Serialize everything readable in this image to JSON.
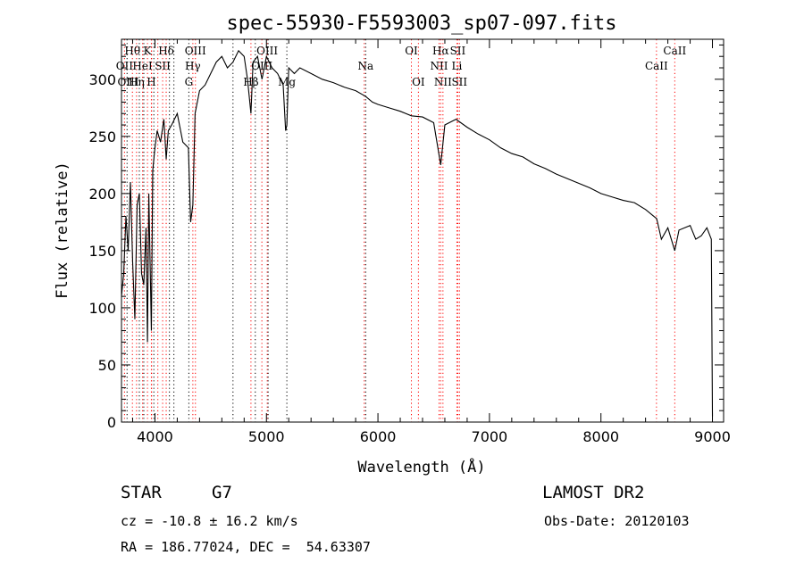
{
  "chart_data": {
    "type": "line",
    "title": "spec-55930-F5593003_sp07-097.fits",
    "xlabel": "Wavelength (Å)",
    "ylabel": "Flux (relative)",
    "xlim": [
      3700,
      9100
    ],
    "ylim": [
      0,
      335
    ],
    "xticks": [
      4000,
      5000,
      6000,
      7000,
      8000,
      9000
    ],
    "yticks": [
      0,
      50,
      100,
      150,
      200,
      250,
      300
    ],
    "grid": false,
    "series": [
      {
        "x": [
          3700,
          3720,
          3740,
          3760,
          3780,
          3800,
          3820,
          3840,
          3860,
          3880,
          3900,
          3920,
          3933,
          3945,
          3968,
          3980,
          4000,
          4020,
          4050,
          4080,
          4101,
          4120,
          4150,
          4200,
          4250,
          4300,
          4320,
          4340,
          4360,
          4400,
          4450,
          4500,
          4550,
          4600,
          4650,
          4700,
          4750,
          4800,
          4830,
          4861,
          4880,
          4920,
          4960,
          5000,
          5050,
          5100,
          5150,
          5172,
          5183,
          5200,
          5250,
          5300,
          5400,
          5500,
          5600,
          5700,
          5800,
          5890,
          5950,
          6000,
          6100,
          6200,
          6300,
          6400,
          6500,
          6563,
          6600,
          6700,
          6800,
          6900,
          7000,
          7100,
          7200,
          7300,
          7400,
          7500,
          7600,
          7700,
          7800,
          7900,
          8000,
          8100,
          8200,
          8300,
          8400,
          8500,
          8542,
          8600,
          8662,
          8700,
          8800,
          8850,
          8900,
          8950,
          8990,
          9000
        ],
        "y": [
          110,
          130,
          180,
          150,
          210,
          140,
          90,
          190,
          200,
          130,
          120,
          170,
          70,
          200,
          80,
          220,
          240,
          255,
          245,
          265,
          230,
          255,
          260,
          270,
          245,
          240,
          175,
          190,
          270,
          290,
          295,
          305,
          315,
          320,
          310,
          315,
          325,
          320,
          300,
          270,
          315,
          320,
          300,
          320,
          310,
          305,
          295,
          255,
          260,
          310,
          305,
          310,
          305,
          300,
          297,
          293,
          290,
          285,
          280,
          278,
          275,
          272,
          268,
          267,
          262,
          225,
          260,
          265,
          258,
          252,
          247,
          240,
          235,
          232,
          226,
          222,
          217,
          213,
          209,
          205,
          200,
          197,
          194,
          192,
          186,
          178,
          160,
          170,
          150,
          168,
          172,
          160,
          163,
          170,
          160,
          5
        ]
      }
    ],
    "line_groups": [
      {
        "color": "#ff0000",
        "x": [
          3727,
          3798,
          3835,
          3889,
          3933,
          3968,
          3970,
          4026,
          4069,
          4101,
          4340,
          4363,
          4861,
          4959,
          5007,
          5877,
          6300,
          6363,
          6548,
          6563,
          6583,
          6708,
          6716,
          6731,
          8498,
          8662
        ]
      },
      {
        "color": "#000000",
        "x": [
          3750,
          3860,
          3900,
          3990,
          4130,
          4170,
          4304,
          4700,
          4900,
          5015,
          5183,
          5890
        ]
      }
    ],
    "line_labels": [
      {
        "text": "Hθ",
        "x": 3798,
        "row": 1
      },
      {
        "text": "K",
        "x": 3933,
        "row": 1
      },
      {
        "text": "Hδ",
        "x": 4101,
        "row": 1
      },
      {
        "text": "OIII",
        "x": 4363,
        "row": 1
      },
      {
        "text": "OIII",
        "x": 5007,
        "row": 1
      },
      {
        "text": "OI",
        "x": 6300,
        "row": 1
      },
      {
        "text": "Hα",
        "x": 6563,
        "row": 1
      },
      {
        "text": "SII",
        "x": 6716,
        "row": 1
      },
      {
        "text": "CaII",
        "x": 8662,
        "row": 1
      },
      {
        "text": "OII",
        "x": 3727,
        "row": 2
      },
      {
        "text": "HeI",
        "x": 3889,
        "row": 2
      },
      {
        "text": "SII",
        "x": 4069,
        "row": 2
      },
      {
        "text": "Hγ",
        "x": 4340,
        "row": 2
      },
      {
        "text": "OIII",
        "x": 4959,
        "row": 2
      },
      {
        "text": "Na",
        "x": 5890,
        "row": 2
      },
      {
        "text": "NII",
        "x": 6548,
        "row": 2
      },
      {
        "text": "Li",
        "x": 6708,
        "row": 2
      },
      {
        "text": "CaII",
        "x": 8498,
        "row": 2
      },
      {
        "text": "OIII",
        "x": 3760,
        "row": 3
      },
      {
        "text": "Hη",
        "x": 3835,
        "row": 3
      },
      {
        "text": "H",
        "x": 3968,
        "row": 3
      },
      {
        "text": "G",
        "x": 4304,
        "row": 3
      },
      {
        "text": "Hβ",
        "x": 4861,
        "row": 3
      },
      {
        "text": "Mg",
        "x": 5183,
        "row": 3
      },
      {
        "text": "OI",
        "x": 6363,
        "row": 3
      },
      {
        "text": "NII",
        "x": 6583,
        "row": 3
      },
      {
        "text": "SII",
        "x": 6731,
        "row": 3
      }
    ]
  },
  "footer": {
    "object_class": "STAR",
    "subclass": "G7",
    "survey": "LAMOST DR2",
    "redshift": "cz = -10.8 ± 16.2 km/s",
    "obs_date": "Obs-Date: 20120103",
    "coords": "RA = 186.77024, DEC =  54.63307"
  }
}
